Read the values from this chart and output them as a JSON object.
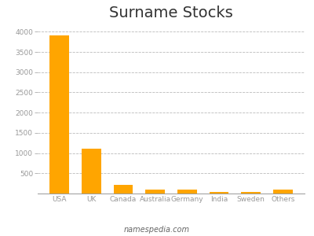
{
  "categories": [
    "USA",
    "UK",
    "Canada",
    "Australia",
    "Germany",
    "India",
    "Sweden",
    "Others"
  ],
  "values": [
    3900,
    1100,
    205,
    105,
    90,
    40,
    35,
    95
  ],
  "bar_color": "#FFA500",
  "title": "Surname Stocks",
  "title_fontsize": 14,
  "ylabel": "",
  "xlabel": "",
  "ylim": [
    0,
    4200
  ],
  "yticks": [
    500,
    1000,
    1500,
    2000,
    2500,
    3000,
    3500,
    4000
  ],
  "ytick_labels": [
    "500",
    "1000",
    "1500",
    "2000",
    "2500",
    "3000",
    "3500",
    "4000"
  ],
  "footer_text": "namespedia.com",
  "background_color": "#ffffff",
  "grid_color": "#bbbbbb",
  "tick_color": "#999999",
  "label_color": "#999999"
}
